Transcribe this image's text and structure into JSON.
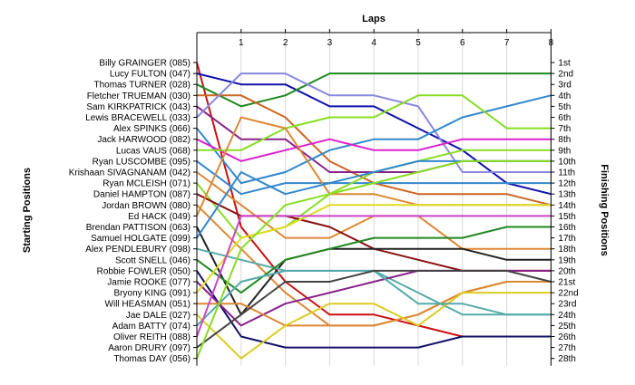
{
  "chart_data": {
    "type": "line",
    "title": "Laps",
    "ylabel_left": "Starting Positions",
    "ylabel_right": "Finishing Positions",
    "x": [
      1,
      2,
      3,
      4,
      5,
      6,
      7,
      8
    ],
    "drivers": [
      "Billy GRAINGER (085)",
      "Lucy FULTON (047)",
      "Thomas TURNER (028)",
      "Fletcher TRUEMAN (030)",
      "Sam KIRKPATRICK (043)",
      "Lewis BRACEWELL (033)",
      "Alex SPINKS (066)",
      "Jack HARWOOD (082)",
      "Lucas VAUS (068)",
      "Ryan LUSCOMBE (095)",
      "Krishaan SIVAGNANAM (042)",
      "Ryan MCLEISH (071)",
      "Daniel HAMPTON (087)",
      "Jordan BROWN (080)",
      "Ed HACK (049)",
      "Brendan PATTISON (063)",
      "Samuel HOLGATE (099)",
      "Alex PENDLEBURY (098)",
      "Scott SNELL (046)",
      "Robbie FOWLER (050)",
      "Jamie ROOKE (077)",
      "Bryony KING (091)",
      "Will HEASMAN (051)",
      "Jae DALE (027)",
      "Adam BATTY (074)",
      "Oliver REITH (088)",
      "Aaron DRURY (097)",
      "Thomas DAY (056)"
    ],
    "finish_labels": [
      "1st",
      "2nd",
      "3rd",
      "4th",
      "5th",
      "6th",
      "7th",
      "8th",
      "9th",
      "10th",
      "11th",
      "12th",
      "13th",
      "14th",
      "15th",
      "16th",
      "17th",
      "18th",
      "19th",
      "20th",
      "21st",
      "22nd",
      "23rd",
      "24th",
      "25th",
      "26th",
      "27th",
      "28th"
    ],
    "series": [
      {
        "start": 1,
        "color": "#cc1111",
        "values": [
          16,
          21,
          24,
          24,
          25,
          26,
          26,
          26
        ]
      },
      {
        "start": 2,
        "color": "#1111aa",
        "values": [
          3,
          3,
          5,
          5,
          7,
          9,
          12,
          13
        ]
      },
      {
        "start": 3,
        "color": "#228822",
        "values": [
          5,
          4,
          2,
          2,
          2,
          2,
          2,
          2
        ]
      },
      {
        "start": 4,
        "color": "#cc6622",
        "values": [
          4,
          6,
          10,
          12,
          13,
          13,
          13,
          14
        ]
      },
      {
        "start": 5,
        "color": "#882288",
        "values": [
          8,
          8,
          11,
          11,
          11,
          10,
          10,
          10
        ]
      },
      {
        "start": 6,
        "color": "#8888dd",
        "values": [
          2,
          2,
          4,
          4,
          5,
          11,
          11,
          11
        ]
      },
      {
        "start": 7,
        "color": "#3388cc",
        "values": [
          12,
          11,
          9,
          8,
          8,
          6,
          5,
          4
        ]
      },
      {
        "start": 8,
        "color": "#dd22cc",
        "values": [
          10,
          9,
          8,
          9,
          9,
          8,
          8,
          8
        ]
      },
      {
        "start": 9,
        "color": "#88dd22",
        "values": [
          9,
          7,
          6,
          6,
          4,
          4,
          7,
          7
        ]
      },
      {
        "start": 10,
        "color": "#3388cc",
        "values": [
          13,
          12,
          12,
          12,
          12,
          12,
          12,
          12
        ]
      },
      {
        "start": 11,
        "color": "#dd8833",
        "values": [
          14,
          17,
          17,
          15,
          15,
          18,
          18,
          18
        ]
      },
      {
        "start": 12,
        "color": "#88dd22",
        "values": [
          17,
          16,
          13,
          11,
          10,
          9,
          9,
          9
        ]
      },
      {
        "start": 13,
        "color": "#881111",
        "values": [
          15,
          15,
          16,
          18,
          19,
          20,
          20,
          20
        ]
      },
      {
        "start": 14,
        "color": "#dd8833",
        "values": [
          18,
          22,
          25,
          25,
          24,
          22,
          21,
          21
        ]
      },
      {
        "start": 15,
        "color": "#dd8833",
        "values": [
          6,
          7,
          13,
          13,
          14,
          14,
          14,
          14
        ]
      },
      {
        "start": 16,
        "color": "#222222",
        "values": [
          24,
          19,
          18,
          18,
          18,
          18,
          19,
          19
        ]
      },
      {
        "start": 17,
        "color": "#3388cc",
        "values": [
          11,
          13,
          12,
          11,
          10,
          10,
          10,
          10
        ]
      },
      {
        "start": 18,
        "color": "#55aaaa",
        "values": [
          19,
          20,
          20,
          20,
          22,
          24,
          24,
          24
        ]
      },
      {
        "start": 19,
        "color": "#228822",
        "values": [
          22,
          19,
          18,
          17,
          17,
          17,
          16,
          16
        ]
      },
      {
        "start": 20,
        "color": "#111166",
        "values": [
          26,
          27,
          27,
          27,
          27,
          26,
          26,
          26
        ]
      },
      {
        "start": 21,
        "color": "#882288",
        "values": [
          25,
          23,
          22,
          21,
          20,
          20,
          20,
          20
        ]
      },
      {
        "start": 22,
        "color": "#dddd22",
        "values": [
          17,
          16,
          14,
          14,
          14,
          14,
          14,
          14
        ]
      },
      {
        "start": 23,
        "color": "#dd8833",
        "values": [
          23,
          25,
          25,
          25,
          24,
          22,
          21,
          21
        ]
      },
      {
        "start": 24,
        "color": "#ddcc22",
        "values": [
          28,
          25,
          23,
          23,
          25,
          22,
          22,
          22
        ]
      },
      {
        "start": 25,
        "color": "#55aaaa",
        "values": [
          21,
          20,
          20,
          20,
          23,
          23,
          24,
          24
        ]
      },
      {
        "start": 26,
        "color": "#cc44cc",
        "values": [
          15,
          15,
          15,
          15,
          15,
          15,
          15,
          15
        ]
      },
      {
        "start": 27,
        "color": "#444444",
        "values": [
          24,
          21,
          21,
          20,
          20,
          20,
          20,
          21
        ]
      },
      {
        "start": 28,
        "color": "#88dd22",
        "values": [
          18,
          14,
          13,
          12,
          11,
          10,
          10,
          10
        ]
      }
    ],
    "grid": true,
    "legend": "none"
  }
}
